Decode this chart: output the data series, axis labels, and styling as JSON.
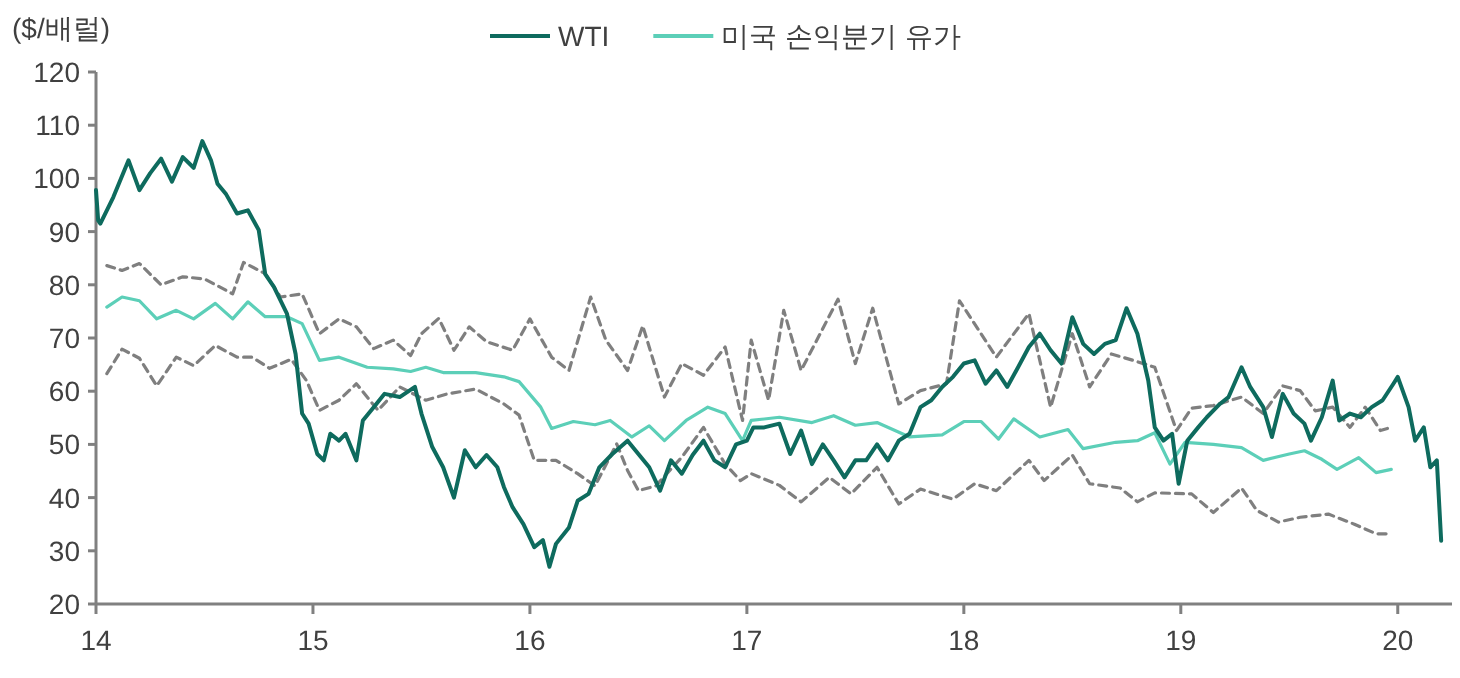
{
  "chart_data": {
    "type": "line",
    "ylabel": "($/배럴)",
    "xlim": [
      14,
      20.25
    ],
    "xticks": [
      14,
      15,
      16,
      17,
      18,
      19,
      20
    ],
    "ylim": [
      20,
      120
    ],
    "yticks": [
      20,
      30,
      40,
      50,
      60,
      70,
      80,
      90,
      100,
      110,
      120
    ],
    "grid": false,
    "legend": "top",
    "marker": "none",
    "series": [
      {
        "name": "WTI",
        "color": "#0e6b5e",
        "line_style": "solid",
        "x": [
          14.0,
          14.01,
          14.02,
          14.08,
          14.15,
          14.2,
          14.25,
          14.3,
          14.35,
          14.4,
          14.45,
          14.49,
          14.53,
          14.56,
          14.6,
          14.65,
          14.7,
          14.75,
          14.78,
          14.82,
          14.88,
          14.92,
          14.95,
          14.98,
          15.02,
          15.05,
          15.08,
          15.12,
          15.15,
          15.2,
          15.23,
          15.28,
          15.33,
          15.4,
          15.47,
          15.5,
          15.55,
          15.6,
          15.65,
          15.7,
          15.75,
          15.8,
          15.85,
          15.88,
          15.92,
          15.97,
          16.02,
          16.06,
          16.09,
          16.12,
          16.18,
          16.22,
          16.27,
          16.32,
          16.38,
          16.45,
          16.5,
          16.55,
          16.6,
          16.65,
          16.7,
          16.75,
          16.8,
          16.85,
          16.9,
          16.95,
          17.0,
          17.03,
          17.08,
          17.15,
          17.2,
          17.25,
          17.3,
          17.35,
          17.4,
          17.45,
          17.5,
          17.55,
          17.6,
          17.65,
          17.7,
          17.75,
          17.8,
          17.85,
          17.9,
          17.95,
          18.0,
          18.05,
          18.1,
          18.15,
          18.2,
          18.25,
          18.3,
          18.35,
          18.4,
          18.45,
          18.5,
          18.55,
          18.6,
          18.65,
          18.7,
          18.75,
          18.8,
          18.85,
          18.88,
          18.92,
          18.96,
          18.99,
          19.03,
          19.08,
          19.12,
          19.18,
          19.22,
          19.28,
          19.32,
          19.38,
          19.42,
          19.47,
          19.52,
          19.57,
          19.6,
          19.65,
          19.7,
          19.73,
          19.78,
          19.83,
          19.88,
          19.93,
          19.98,
          20.0,
          20.05,
          20.08,
          20.12,
          20.15,
          20.18,
          20.2
        ],
        "values": [
          97.8,
          92.1,
          91.5,
          96.5,
          103.4,
          97.8,
          101,
          103.7,
          99.4,
          104,
          102,
          107,
          103.4,
          99,
          97,
          93.4,
          94,
          90.3,
          82,
          79.6,
          74.6,
          67,
          55.8,
          53.9,
          48.2,
          47,
          52,
          50.7,
          52,
          47,
          54.5,
          57,
          59.5,
          58.9,
          60.8,
          55.8,
          49.5,
          45.7,
          40,
          48.9,
          45.7,
          48,
          45.7,
          42,
          38.2,
          35,
          30.7,
          32,
          27,
          31.3,
          34.4,
          39.4,
          40.7,
          45.7,
          48.2,
          50.7,
          48.2,
          45.7,
          41.3,
          47,
          44.5,
          48,
          50.7,
          47,
          45.7,
          50,
          50.7,
          53.2,
          53.2,
          53.9,
          48.2,
          52.6,
          46.3,
          50,
          47,
          43.8,
          47,
          47,
          50,
          47,
          50.7,
          52,
          57,
          58.3,
          60.8,
          62.7,
          65.2,
          65.8,
          61.4,
          63.9,
          60.8,
          64.5,
          68.3,
          70.8,
          67.7,
          65.2,
          73.9,
          68.9,
          67,
          68.9,
          69.6,
          75.6,
          70.8,
          62,
          53.2,
          50.7,
          52,
          42.6,
          50.7,
          53.2,
          55.1,
          57.6,
          58.9,
          64.5,
          60.8,
          57,
          51.4,
          59.5,
          55.8,
          53.9,
          50.7,
          55.1,
          62,
          54.5,
          55.8,
          55.1,
          57,
          58.3,
          61.4,
          62.7,
          57,
          50.7,
          53.2,
          45.7,
          47,
          31.9
        ]
      },
      {
        "name": "미국 손익분기 유가",
        "color": "#5ccfb8",
        "line_style": "solid",
        "x": [
          14.05,
          14.12,
          14.2,
          14.28,
          14.37,
          14.45,
          14.55,
          14.63,
          14.7,
          14.78,
          14.88,
          14.95,
          15.03,
          15.12,
          15.25,
          15.37,
          15.45,
          15.52,
          15.6,
          15.75,
          15.88,
          15.95,
          16.05,
          16.1,
          16.2,
          16.3,
          16.37,
          16.47,
          16.55,
          16.62,
          16.72,
          16.82,
          16.9,
          16.98,
          17.02,
          17.15,
          17.3,
          17.4,
          17.5,
          17.6,
          17.75,
          17.9,
          18.0,
          18.08,
          18.16,
          18.23,
          18.35,
          18.48,
          18.55,
          18.7,
          18.8,
          18.88,
          18.95,
          19.02,
          19.15,
          19.28,
          19.38,
          19.5,
          19.57,
          19.65,
          19.72,
          19.82,
          19.9,
          19.97
        ],
        "values": [
          75.8,
          77.7,
          77,
          73.6,
          75.2,
          73.6,
          76.5,
          73.6,
          76.8,
          74,
          74,
          72.7,
          65.8,
          66.4,
          64.5,
          64.2,
          63.7,
          64.5,
          63.5,
          63.5,
          62.7,
          61.8,
          57,
          53,
          54.3,
          53.7,
          54.5,
          51.4,
          53.5,
          50.7,
          54.5,
          57,
          55.8,
          50.7,
          54.5,
          55.1,
          54.1,
          55.4,
          53.6,
          54.1,
          51.4,
          51.8,
          54.3,
          54.3,
          51,
          54.8,
          51.4,
          52.8,
          49.2,
          50.4,
          50.7,
          52.2,
          46.3,
          50.4,
          50,
          49.4,
          47,
          48.2,
          48.8,
          47.2,
          45.3,
          47.5,
          44.7,
          45.3
        ]
      },
      {
        "color": "#7f7f7f",
        "line_style": "dashed",
        "x": [
          14.05,
          14.12,
          14.2,
          14.3,
          14.4,
          14.5,
          14.63,
          14.68,
          14.78,
          14.85,
          14.95,
          15.03,
          15.12,
          15.2,
          15.28,
          15.37,
          15.45,
          15.5,
          15.58,
          15.65,
          15.72,
          15.8,
          15.92,
          16.0,
          16.1,
          16.18,
          16.28,
          16.35,
          16.45,
          16.52,
          16.62,
          16.7,
          16.8,
          16.9,
          16.98,
          17.02,
          17.1,
          17.17,
          17.25,
          17.42,
          17.5,
          17.58,
          17.7,
          17.8,
          17.92,
          17.98,
          18.15,
          18.3,
          18.4,
          18.5,
          18.58,
          18.68,
          18.78,
          18.88,
          18.98,
          19.05,
          19.15,
          19.28,
          19.38,
          19.47,
          19.55,
          19.62,
          19.7,
          19.78,
          19.85,
          19.92,
          19.97
        ],
        "values": [
          83.6,
          82.7,
          84,
          80,
          81.5,
          81.1,
          78.3,
          84.2,
          82.1,
          77.7,
          78.3,
          70.8,
          73.6,
          72.1,
          68,
          69.6,
          66.7,
          70.8,
          73.7,
          67.7,
          72.1,
          69.3,
          67.7,
          73.6,
          66.4,
          63.9,
          77.7,
          69.6,
          63.9,
          72.3,
          58.9,
          65.2,
          63,
          68.3,
          54.5,
          69.6,
          58.3,
          75.2,
          63.9,
          77.3,
          65.2,
          75.6,
          57.6,
          60.1,
          61.4,
          77,
          66.4,
          74.6,
          57,
          70.8,
          60.8,
          67,
          65.8,
          64.5,
          52.6,
          56.8,
          57.3,
          58.9,
          55.8,
          61,
          60.1,
          56.3,
          57,
          53.2,
          57,
          52.6,
          53.2
        ]
      },
      {
        "color": "#7f7f7f",
        "line_style": "dashed",
        "x": [
          14.05,
          14.12,
          14.2,
          14.28,
          14.37,
          14.45,
          14.55,
          14.65,
          14.72,
          14.8,
          14.9,
          14.97,
          15.03,
          15.12,
          15.2,
          15.3,
          15.4,
          15.52,
          15.62,
          15.75,
          15.88,
          15.95,
          16.02,
          16.12,
          16.22,
          16.3,
          16.4,
          16.45,
          16.5,
          16.58,
          16.7,
          16.8,
          16.9,
          16.97,
          17.02,
          17.15,
          17.25,
          17.38,
          17.48,
          17.6,
          17.7,
          17.8,
          17.95,
          18.05,
          18.15,
          18.3,
          18.37,
          18.5,
          18.58,
          18.72,
          18.8,
          18.88,
          19.05,
          19.15,
          19.28,
          19.35,
          19.45,
          19.55,
          19.68,
          19.8,
          19.9,
          19.97
        ],
        "values": [
          63.3,
          67.9,
          66.2,
          61,
          66.4,
          64.8,
          68.6,
          66.4,
          66.4,
          64.3,
          66,
          62,
          56.4,
          58.3,
          61.4,
          56.4,
          60.8,
          58.3,
          59.5,
          60.4,
          57.6,
          55.5,
          47,
          47,
          44.5,
          42.2,
          50.1,
          45.1,
          41.3,
          42.2,
          47.6,
          53.2,
          46.3,
          43.2,
          44.5,
          42.3,
          39.2,
          43.8,
          40.7,
          45.7,
          38.8,
          41.6,
          39.7,
          42.6,
          41.3,
          47,
          43.2,
          48,
          42.6,
          41.8,
          39.2,
          40.9,
          40.7,
          37.2,
          41.8,
          37.6,
          35.4,
          36.3,
          36.9,
          35,
          33.2,
          33.2
        ]
      }
    ]
  }
}
